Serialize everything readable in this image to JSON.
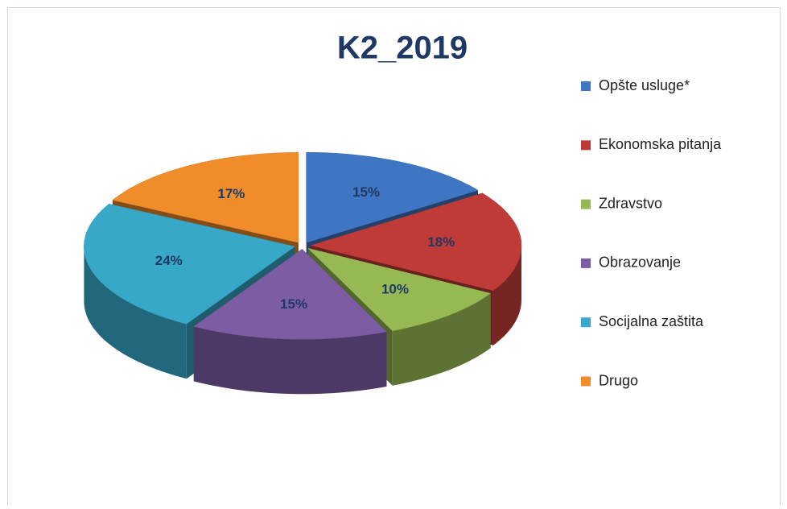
{
  "chart_data": {
    "type": "pie",
    "title": "K2_2019",
    "categories": [
      "Opšte usluge*",
      "Ekonomska pitanja",
      "Zdravstvo",
      "Obrazovanje",
      "Socijalna zaštita",
      "Drugo"
    ],
    "values": [
      15,
      18,
      10,
      15,
      24,
      17
    ],
    "value_labels": [
      "15%",
      "18%",
      "10%",
      "15%",
      "24%",
      "17%"
    ],
    "colors": [
      "#3f76c3",
      "#be3b38",
      "#97b953",
      "#7c5ca3",
      "#37a8c8",
      "#f08c2a"
    ],
    "legend": "right"
  }
}
